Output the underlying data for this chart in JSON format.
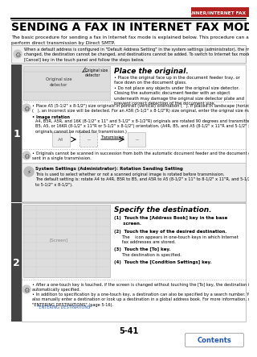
{
  "header_text": "SCANNER/INTERNET FAX",
  "header_bar_color": "#b32020",
  "title": "SENDING A FAX IN INTERNET FAX MODE",
  "subtitle": "The basic procedure for sending a fax in Internet fax mode is explained below. This procedure can also be used to\nperform direct transmission by Direct SMTP.",
  "note_box_text": "When a default address is configured in \"Default Address Setting\" in the system settings (administrator), the mode cannot be\nchanged, the destination cannot be changed, and destinations cannot be added. To switch to Internet fax mode, touch the\n[Cancel] key in the touch panel and follow the steps below.",
  "step1_title": "Place the original.",
  "step1_bullets": [
    "Place the original face up in the document feeder tray, or\nface down on the document glass.",
    "Do not place any objects under the original size detector.\nClosing the automatic document feeder with an object\nunderneath may damage the original size detector plate and\nprevent correct detection of the document size."
  ],
  "step1_note1": "Place A5 (5-1/2\" x 8-1/2\") size originals in portrait (vertical) orientation (   ). If placed in landscape (horizontal) orientation\n(   ), an incorrect size will be detected. For an A5R (5-1/2\" x 8-1/2\"R) size original, enter the original size manually.",
  "step1_image_rotation": "Image rotation",
  "step1_rotation_detail": "A4, B5R, A5R, and 16K (8-1/2\" x 11\" and 5-1/2\" x 8-1/2\"R) originals are rotated 90 degrees and transmitted in A4R,\nB5, A5, or 16KR (8-1/2\" x 11\"R or 5-1/2\" x 8-1/2\") orientation. (A4R, B5, and A5 (8-1/2\" x 11\"R and 5-1/2\" x 8-1/2\")\noriginals cannot be rotated for transmission.)",
  "step1_note2": "Originals cannot be scanned in succession from both the automatic document feeder and the document glass and\nsent in a single transmission.",
  "step1_sys_title": "System Settings (Administrator): Rotation Sending Setting",
  "step1_sys_body": "This is used to select whether or not a scanned original image is rotated before transmission.\nThe default setting is: rotate A4 to A4R, B5R to B5, and A5R to A5 (8-1/2\" x 11\" to 8-1/2\" x 11\"R, and 5-1/2\" x 8-1/2\"R\nto 5-1/2\" x 8-1/2\").",
  "step2_title": "Specify the destination.",
  "step2_item1a": "(1)  Touch the [Address Book] key in the base",
  "step2_item1b": "      screen.",
  "step2_item2a": "(2)  Touch the key of the desired destination.",
  "step2_item2b": "      The    icon appears in one-touch keys in which Internet",
  "step2_item2c": "      fax addresses are stored.",
  "step2_item3a": "(3)  Touch the [To] key.",
  "step2_item3b": "      The destination is specified.",
  "step2_item4": "(4)  Touch the [Condition Settings] key.",
  "step2_note1": "After a one-touch key is touched, if the screen is changed without touching the [To] key, the destination is\nautomatically specified.",
  "step2_note2": "In addition to specification by a one-touch key, a destination can also be specified by a search number. You can\nalso manually enter a destination or look up a destination in a global address book. For more information, see\n\"ENTERING DESTINATIONS\" (page 5-16).",
  "entering_dest_link": "\"ENTERING DESTINATIONS\"",
  "page_number": "5-41",
  "contents_button_text": "Contents",
  "contents_button_color": "#2255bb",
  "dark_bar_color": "#444444",
  "bg_color": "#ffffff",
  "note_bg": "#f2f2f2",
  "sys_bg": "#eeeeee"
}
